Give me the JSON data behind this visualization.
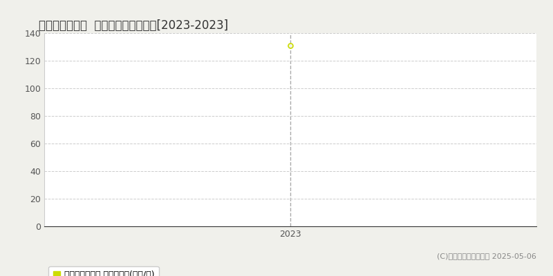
{
  "title": "別府市山の手町  マンション価格推移[2023-2023]",
  "x_data": [
    2023
  ],
  "y_data": [
    131
  ],
  "ylim": [
    0,
    140
  ],
  "yticks": [
    0,
    20,
    40,
    60,
    80,
    100,
    120,
    140
  ],
  "xlim": [
    2022.3,
    2023.7
  ],
  "xticks": [
    2023
  ],
  "point_color": "#ccdd00",
  "dashed_line_color": "#aaaaaa",
  "grid_color": "#cccccc",
  "bg_color": "#f0f0eb",
  "plot_bg_color": "#ffffff",
  "legend_label": "マンション価格 平均坪単価(万円/坪)",
  "legend_square_color": "#ccdd00",
  "copyright_text": "(C)土地価格ドットコム 2025-05-06",
  "title_fontsize": 12,
  "tick_fontsize": 9,
  "legend_fontsize": 9,
  "copyright_fontsize": 8
}
